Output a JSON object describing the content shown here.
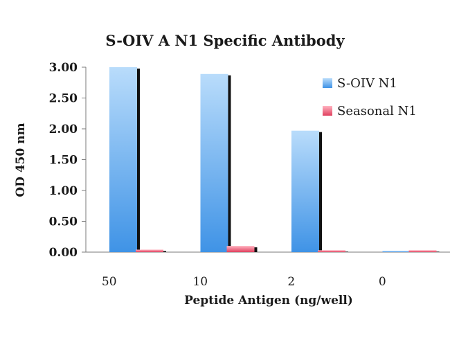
{
  "chart_data": {
    "type": "bar",
    "title": "S-OIV A N1 Specific Antibody",
    "xlabel": "Peptide Antigen (ng/well)",
    "ylabel": "OD 450 nm",
    "categories": [
      "50",
      "10",
      "2",
      "0"
    ],
    "series": [
      {
        "name": "S-OIV N1",
        "values": [
          3.0,
          2.89,
          1.97,
          0.02
        ]
      },
      {
        "name": "Seasonal N1",
        "values": [
          0.04,
          0.1,
          0.03,
          0.03
        ]
      }
    ],
    "ylim": [
      0,
      3.0
    ],
    "yticks": [
      "0.00",
      "0.50",
      "1.00",
      "1.50",
      "2.00",
      "2.50",
      "3.00"
    ],
    "grid": false,
    "legend_position": "top-right",
    "colors": {
      "series1_top": "#b9dcfb",
      "series1_bottom": "#3f93e6",
      "series2_top": "#ffb3c0",
      "series2_bottom": "#e0405e",
      "shadow": "#111111",
      "axis": "#7a7a7a"
    }
  }
}
